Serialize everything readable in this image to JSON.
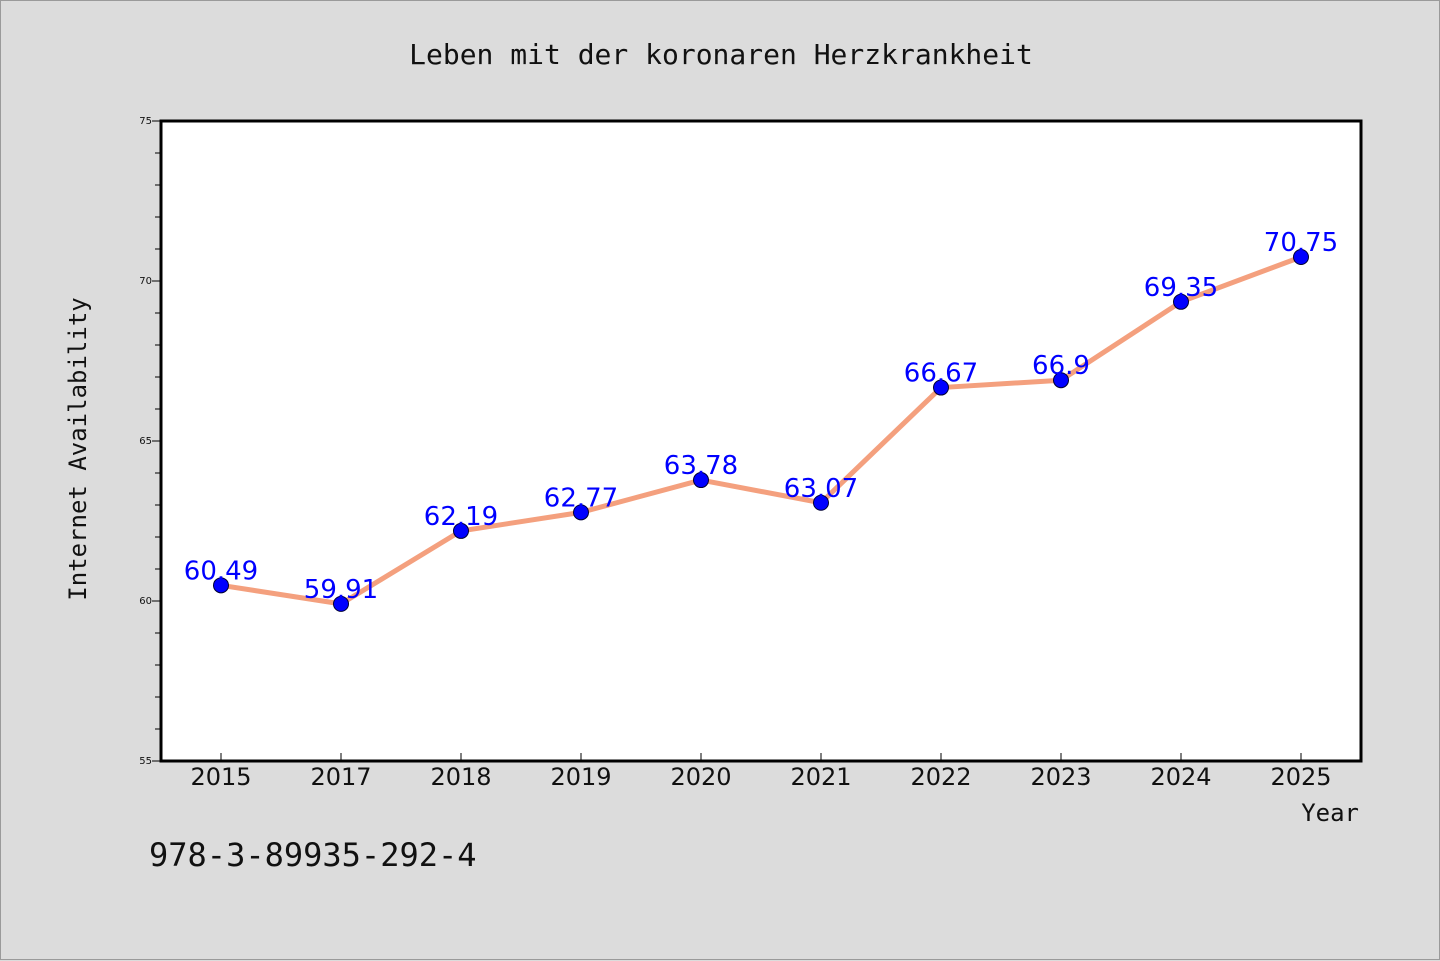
{
  "footer_code": "978-3-89935-292-4",
  "chart_data": {
    "type": "line",
    "title": "Leben mit der koronaren Herzkrankheit",
    "xlabel": "Year",
    "ylabel": "Internet Availability",
    "categories": [
      "2015",
      "2017",
      "2018",
      "2019",
      "2020",
      "2021",
      "2022",
      "2023",
      "2024",
      "2025"
    ],
    "series": [
      {
        "values": [
          60.49,
          59.91,
          62.19,
          62.77,
          63.78,
          63.07,
          66.67,
          66.9,
          69.35,
          70.75
        ],
        "labels": [
          "60.49",
          "59.91",
          "62.19",
          "62.77",
          "63.78",
          "63.07",
          "66.67",
          "66.9",
          "69.35",
          "70.75"
        ]
      }
    ],
    "ylim": [
      55,
      75
    ],
    "yticks": [
      "55",
      "60",
      "65",
      "70",
      "75"
    ],
    "grid": false,
    "line_color": "#f4a07e",
    "marker_color": "#0000ff",
    "label_color": "#0000ff"
  }
}
